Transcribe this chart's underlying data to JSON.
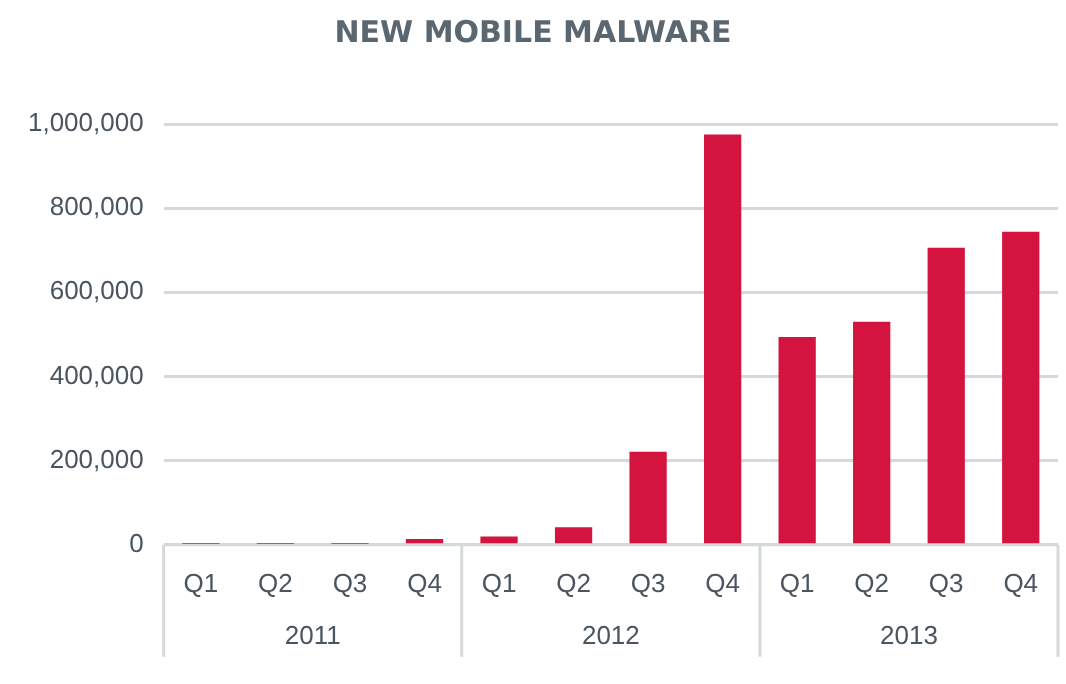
{
  "chart_data": {
    "type": "bar",
    "title": "NEW MOBILE MALWARE",
    "categories": [
      "Q1",
      "Q2",
      "Q3",
      "Q4",
      "Q1",
      "Q2",
      "Q3",
      "Q4",
      "Q1",
      "Q2",
      "Q3",
      "Q4"
    ],
    "values": [
      2000,
      2000,
      2000,
      14000,
      20000,
      42000,
      221000,
      975000,
      494000,
      530000,
      706000,
      744000
    ],
    "color": "#d2143f",
    "ylim": [
      0,
      1000000
    ],
    "yticks": [
      0,
      {
        "value": 200000,
        "label": "200,000"
      },
      {
        "value": 400000,
        "label": "400,000"
      },
      {
        "value": 600000,
        "label": "600,000"
      },
      {
        "value": 800000,
        "label": "800,000"
      },
      {
        "value": 1000000,
        "label": "1,000,000"
      }
    ],
    "grid": "y",
    "legend": false,
    "annotations": [
      "2011",
      "2012",
      "2013"
    ]
  }
}
